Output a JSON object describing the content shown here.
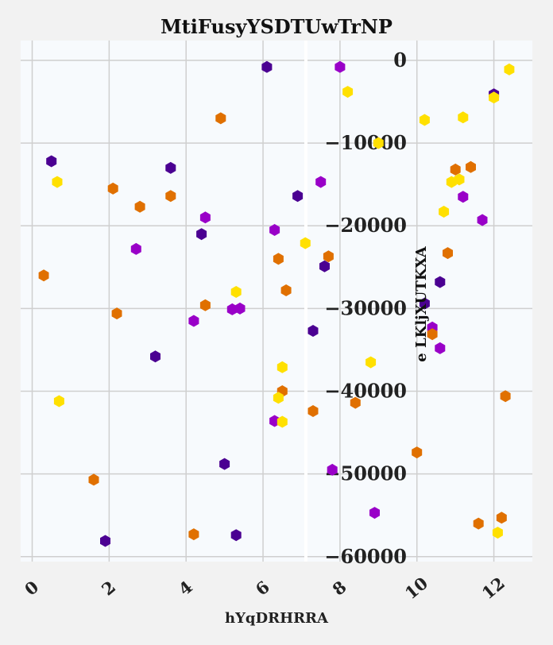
{
  "chart_data": {
    "type": "scatter",
    "title": "MtiFusyYSDTUwTrNP",
    "xlabel": "hYqDRHRRA",
    "ylabel": "e LKljXUTKXA",
    "xlim": [
      -0.3,
      13.0
    ],
    "ylim": [
      -60600,
      2400
    ],
    "xticks": [
      "0",
      "2",
      "4",
      "6",
      "8",
      "10",
      "12"
    ],
    "yticks": [
      "0",
      "−10000",
      "−20000",
      "−30000",
      "−40000",
      "−50000",
      "−60000"
    ],
    "grid": true,
    "marker": "hexagon",
    "series": [
      {
        "color": "#4b0092",
        "x": [
          6.1,
          0.5,
          3.6,
          6.9,
          4.4,
          7.6,
          3.2,
          7.3,
          5.0,
          1.9,
          5.3,
          10.6,
          10.2,
          12.0
        ],
        "y": [
          -800,
          -12200,
          -13000,
          -16400,
          -21000,
          -24900,
          -35800,
          -32700,
          -48800,
          -58100,
          -57400,
          -26800,
          -29400,
          -4100
        ]
      },
      {
        "color": "#9900c8",
        "x": [
          8.0,
          7.5,
          4.5,
          6.3,
          2.7,
          4.2,
          5.2,
          5.4,
          6.3,
          7.8,
          8.9,
          10.4,
          10.6,
          11.2,
          11.7
        ],
        "y": [
          -800,
          -14700,
          -19000,
          -20500,
          -22800,
          -31500,
          -30100,
          -30000,
          -43600,
          -49500,
          -54700,
          -32300,
          -34800,
          -16500,
          -19300
        ]
      },
      {
        "color": "#e07000",
        "x": [
          4.9,
          2.1,
          3.6,
          2.8,
          0.3,
          2.2,
          4.5,
          6.4,
          6.6,
          7.7,
          6.5,
          7.3,
          8.4,
          1.6,
          4.2,
          10.0,
          11.0,
          11.4,
          10.8,
          10.4,
          12.3,
          11.6,
          12.2
        ],
        "y": [
          -7000,
          -15500,
          -16400,
          -17700,
          -26000,
          -30600,
          -29600,
          -24000,
          -27800,
          -23700,
          -40000,
          -42400,
          -41400,
          -50700,
          -57300,
          -47400,
          -13200,
          -12900,
          -23300,
          -33100,
          -40600,
          -56000,
          -55300
        ]
      },
      {
        "color": "#ffe000",
        "x": [
          8.2,
          9.0,
          0.65,
          7.1,
          5.3,
          6.5,
          6.4,
          6.5,
          8.8,
          10.2,
          11.2,
          10.9,
          11.1,
          10.7,
          12.0,
          12.4,
          12.1,
          0.7
        ],
        "y": [
          -3800,
          -10000,
          -14700,
          -22100,
          -28000,
          -37100,
          -40800,
          -43700,
          -36500,
          -7200,
          -6900,
          -14700,
          -14400,
          -18300,
          -4500,
          -1100,
          -57100,
          -41200
        ]
      }
    ]
  }
}
